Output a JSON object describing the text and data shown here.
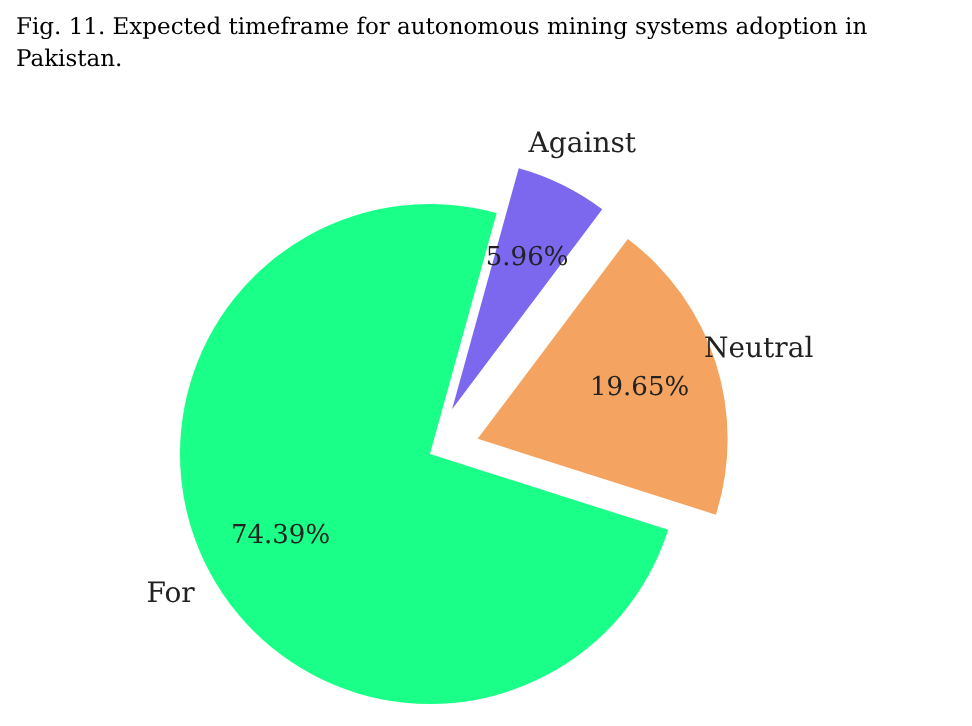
{
  "chart_data": {
    "type": "pie",
    "title": "Fig. 11. Expected timeframe for autonomous mining systems adoption in Pakistan.",
    "categories": [
      "For",
      "Neutral",
      "Against"
    ],
    "values": [
      74.39,
      19.65,
      5.96
    ],
    "colors": [
      "#19ff87",
      "#f4a460",
      "#7b68ee"
    ],
    "value_labels": [
      "74.39%",
      "19.65%",
      "5.96%"
    ]
  }
}
